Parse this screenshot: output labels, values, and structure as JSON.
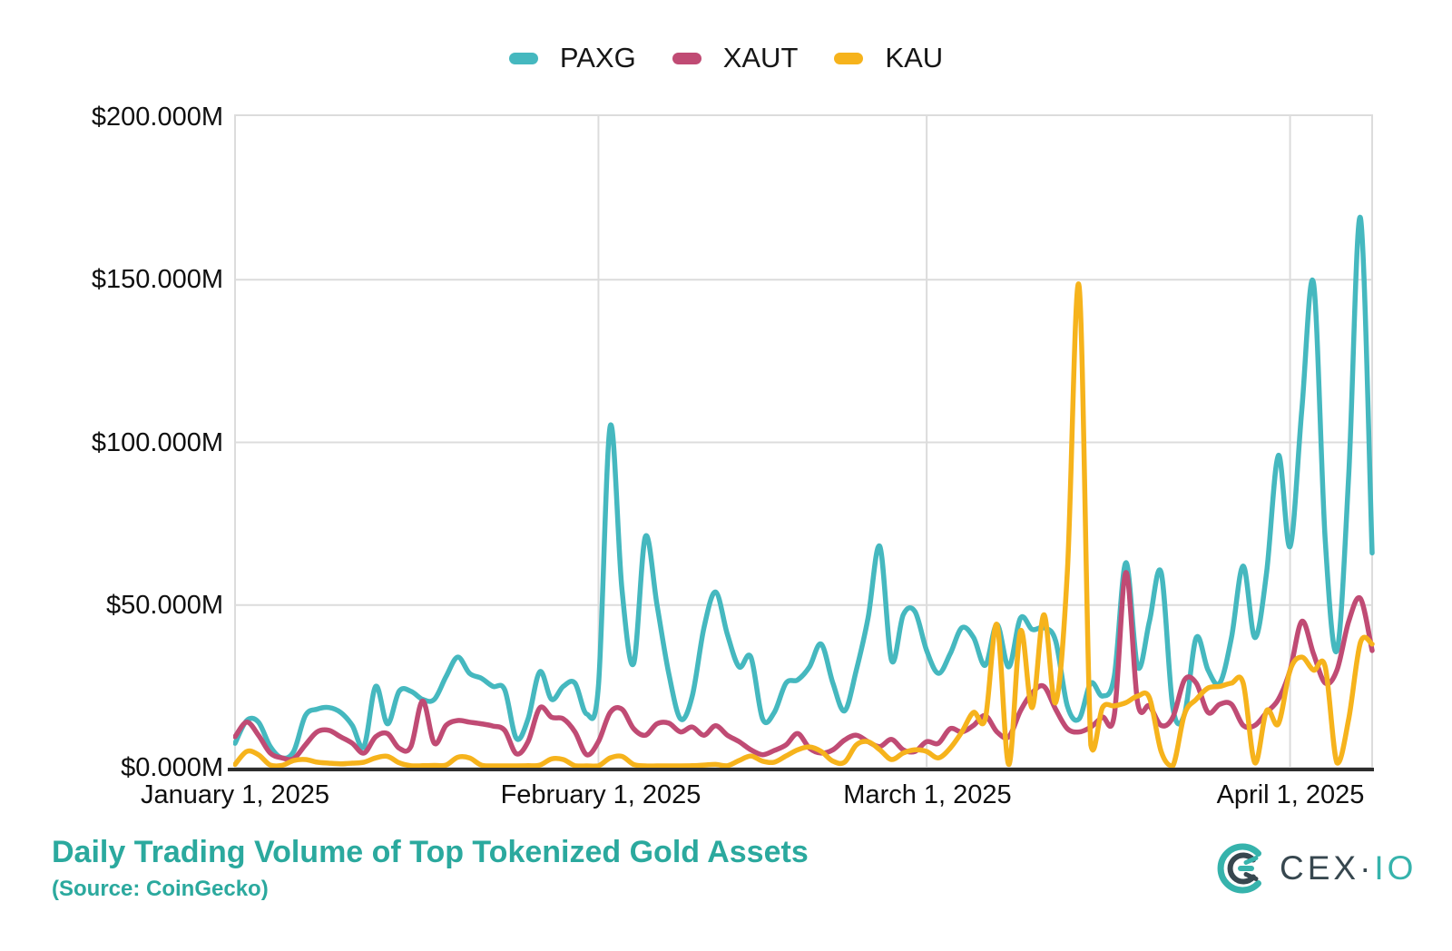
{
  "legend": {
    "items": [
      {
        "label": "PAXG",
        "color": "#45B8BF"
      },
      {
        "label": "XAUT",
        "color": "#C04B74"
      },
      {
        "label": "KAU",
        "color": "#F6B31C"
      }
    ]
  },
  "y_axis": {
    "labels": [
      "$200.000M",
      "$150.000M",
      "$100.000M",
      "$50.000M",
      "$0.000M"
    ]
  },
  "x_axis": {
    "labels": [
      {
        "text": "January 1, 2025",
        "day_index": 0
      },
      {
        "text": "February 1, 2025",
        "day_index": 31
      },
      {
        "text": "March 1, 2025",
        "day_index": 59
      },
      {
        "text": "April 1, 2025",
        "day_index": 90
      }
    ]
  },
  "footer": {
    "title": "Daily Trading Volume of Top Tokenized Gold Assets",
    "subtitle": "(Source: CoinGecko)"
  },
  "logo": {
    "text_primary": "CEX·",
    "text_secondary": "IO",
    "teal": "#36B3AC",
    "dark": "#37474F"
  },
  "colors": {
    "grid": "#DCDCDC",
    "plot_border": "#DCDCDC",
    "axis_line": "#2E2E2E",
    "tick_text": "#0f0f0f",
    "title_teal": "#2BA99E",
    "background": "#ffffff"
  },
  "chart_data": {
    "type": "line",
    "title": "Daily Trading Volume of Top Tokenized Gold Assets",
    "source": "CoinGecko",
    "unit": "USD millions",
    "start_date": "2025-01-01",
    "end_date": "2025-04-08",
    "y_range": [
      0,
      200
    ],
    "y_ticks": [
      0,
      50,
      100,
      150,
      200
    ],
    "x_ticks": [
      "January 1, 2025",
      "February 1, 2025",
      "March 1, 2025",
      "April 1, 2025"
    ],
    "grid": true,
    "legend_position": "top",
    "series": [
      {
        "name": "PAXG",
        "color": "#45B8BF",
        "values": [
          7.5,
          14.5,
          14,
          6.5,
          3,
          5,
          16,
          18,
          18.5,
          17,
          13,
          6.5,
          25,
          13.5,
          23.5,
          23.5,
          21,
          21,
          28,
          34,
          29,
          27.5,
          25,
          24,
          9,
          15,
          29.5,
          21,
          25,
          26,
          16.5,
          25,
          105,
          55,
          32,
          71,
          50,
          29,
          15,
          22,
          43,
          54,
          41,
          31,
          34,
          15,
          17,
          26,
          27,
          31,
          38,
          26,
          17.5,
          30,
          46,
          68,
          33,
          47,
          48,
          36,
          29,
          35,
          43,
          40,
          31.5,
          44,
          31,
          46,
          42.5,
          43,
          39,
          19,
          15,
          26,
          22,
          28,
          63,
          31,
          45,
          60,
          18.5,
          16.5,
          40,
          30,
          26,
          40,
          62,
          40,
          60,
          96,
          68,
          110,
          149,
          70,
          36,
          90,
          169,
          66
        ]
      },
      {
        "name": "XAUT",
        "color": "#C04B74",
        "values": [
          9.5,
          14,
          10,
          4.5,
          3,
          2.8,
          7,
          11,
          11.5,
          9.5,
          7.5,
          4.5,
          9.5,
          10.5,
          6,
          6.5,
          20.5,
          7.5,
          13,
          14.5,
          14,
          13.5,
          12.8,
          11.5,
          4.3,
          8,
          18.4,
          15.5,
          15,
          11,
          4,
          8,
          17,
          18,
          12,
          10,
          13.5,
          13.7,
          11,
          12.5,
          10,
          12.9,
          10,
          8,
          5.5,
          4,
          5.3,
          7,
          10.5,
          6,
          4.5,
          5.5,
          8.5,
          10,
          8,
          6.5,
          8.7,
          5.5,
          5,
          8,
          7.5,
          12,
          11,
          13,
          16,
          11,
          9.5,
          17.5,
          23,
          25,
          18,
          12,
          11,
          12.5,
          15.5,
          16,
          60,
          20,
          19,
          13,
          15.5,
          27,
          26,
          17,
          19.5,
          19.5,
          13,
          13,
          17,
          21,
          30,
          45,
          35,
          26,
          30,
          45,
          52,
          36
        ]
      },
      {
        "name": "KAU",
        "color": "#F6B31C",
        "values": [
          1,
          5,
          4,
          0.8,
          0.7,
          2.2,
          2.5,
          1.7,
          1.4,
          1.2,
          1.4,
          1.7,
          3,
          3.5,
          1.5,
          0.6,
          0.6,
          0.7,
          0.8,
          3.2,
          3,
          0.8,
          0.5,
          0.5,
          0.5,
          0.6,
          0.8,
          2.7,
          2.5,
          0.6,
          0.5,
          0.5,
          3,
          3.5,
          1,
          0.5,
          0.4,
          0.4,
          0.5,
          0.6,
          0.8,
          1,
          0.6,
          2.2,
          3.6,
          2,
          1.7,
          3.6,
          5.5,
          6.4,
          5,
          2,
          1.7,
          7,
          8,
          5.5,
          2.5,
          4.5,
          5.5,
          5,
          3,
          6,
          11,
          17,
          15,
          44,
          1,
          42,
          18.5,
          47,
          20,
          60,
          148,
          7,
          18.5,
          19,
          20,
          22,
          21.5,
          5,
          0.5,
          16.5,
          21,
          24.5,
          25,
          26,
          26,
          1.5,
          17.5,
          13.5,
          30,
          34,
          30,
          31,
          1.5,
          15,
          38.5,
          38
        ]
      }
    ]
  }
}
